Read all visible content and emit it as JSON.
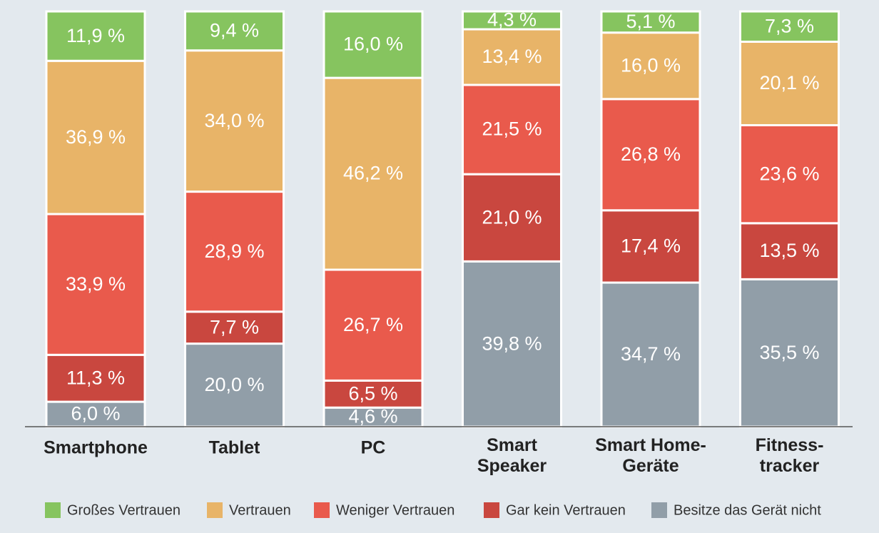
{
  "chart_data": {
    "type": "stacked-bar",
    "categories": [
      "Smartphone",
      "Tablet",
      "PC",
      "Smart Speaker",
      "Smart Home-Geräte",
      "Fitness-tracker"
    ],
    "series": [
      {
        "name": "Großes Vertrauen",
        "color": "#86c45f",
        "values": [
          11.9,
          9.4,
          16.0,
          4.3,
          5.1,
          7.3
        ],
        "value_labels": [
          "11,9 %",
          "9,4 %",
          "16,0 %",
          "4,3 %",
          "5,1 %",
          "7,3 %"
        ]
      },
      {
        "name": "Vertrauen",
        "color": "#e8b468",
        "values": [
          36.9,
          34.0,
          46.2,
          13.4,
          16.0,
          20.1
        ],
        "value_labels": [
          "36,9 %",
          "34,0 %",
          "46,2 %",
          "13,4 %",
          "16,0 %",
          "20,1 %"
        ]
      },
      {
        "name": "Weniger Vertrauen",
        "color": "#e95a4c",
        "values": [
          33.9,
          28.9,
          26.7,
          21.5,
          26.8,
          23.6
        ],
        "value_labels": [
          "33,9 %",
          "28,9 %",
          "26,7 %",
          "21,5 %",
          "26,8 %",
          "23,6 %"
        ]
      },
      {
        "name": "Gar kein Vertrauen",
        "color": "#c9473f",
        "values": [
          11.3,
          7.7,
          6.5,
          21.0,
          17.4,
          13.5
        ],
        "value_labels": [
          "11,3 %",
          "7,7 %",
          "6,5 %",
          "21,0 %",
          "17,4 %",
          "13,5 %"
        ]
      },
      {
        "name": "Besitze das Gerät nicht",
        "color": "#919ea8",
        "values": [
          6.0,
          20.0,
          4.6,
          39.8,
          34.7,
          35.5
        ],
        "value_labels": [
          "6,0 %",
          "20,0 %",
          "4,6 %",
          "39,8 %",
          "34,7 %",
          "35,5 %"
        ]
      }
    ]
  }
}
